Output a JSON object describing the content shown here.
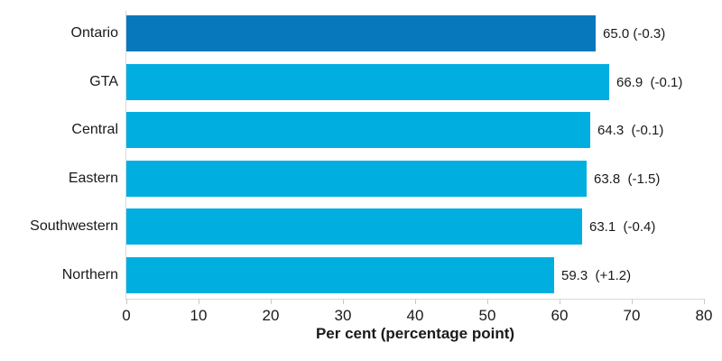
{
  "chart_data": {
    "type": "bar",
    "orientation": "horizontal",
    "title": "",
    "xlabel": "Per cent (percentage point)",
    "ylabel": "",
    "categories": [
      "Ontario",
      "GTA",
      "Central",
      "Eastern",
      "Southwestern",
      "Northern"
    ],
    "values": [
      65.0,
      66.9,
      64.3,
      63.8,
      63.1,
      59.3
    ],
    "changes": [
      -0.3,
      -0.1,
      -0.1,
      -1.5,
      -0.4,
      1.2
    ],
    "value_labels": [
      "65.0 (-0.3)",
      "66.9  (-0.1)",
      "64.3  (-0.1)",
      "63.8  (-1.5)",
      "63.1  (-0.4)",
      "59.3  (+1.2)"
    ],
    "xlim": [
      0,
      80
    ],
    "x_ticks": [
      0,
      10,
      20,
      30,
      40,
      50,
      60,
      70,
      80
    ],
    "grid": "off",
    "legend": "none",
    "highlight_category": "Ontario",
    "colors": {
      "highlight_bar": "#0878BD",
      "default_bar": "#00AEE0",
      "axis_line": "#d9d9d9",
      "text": "#1a1a1a"
    }
  }
}
